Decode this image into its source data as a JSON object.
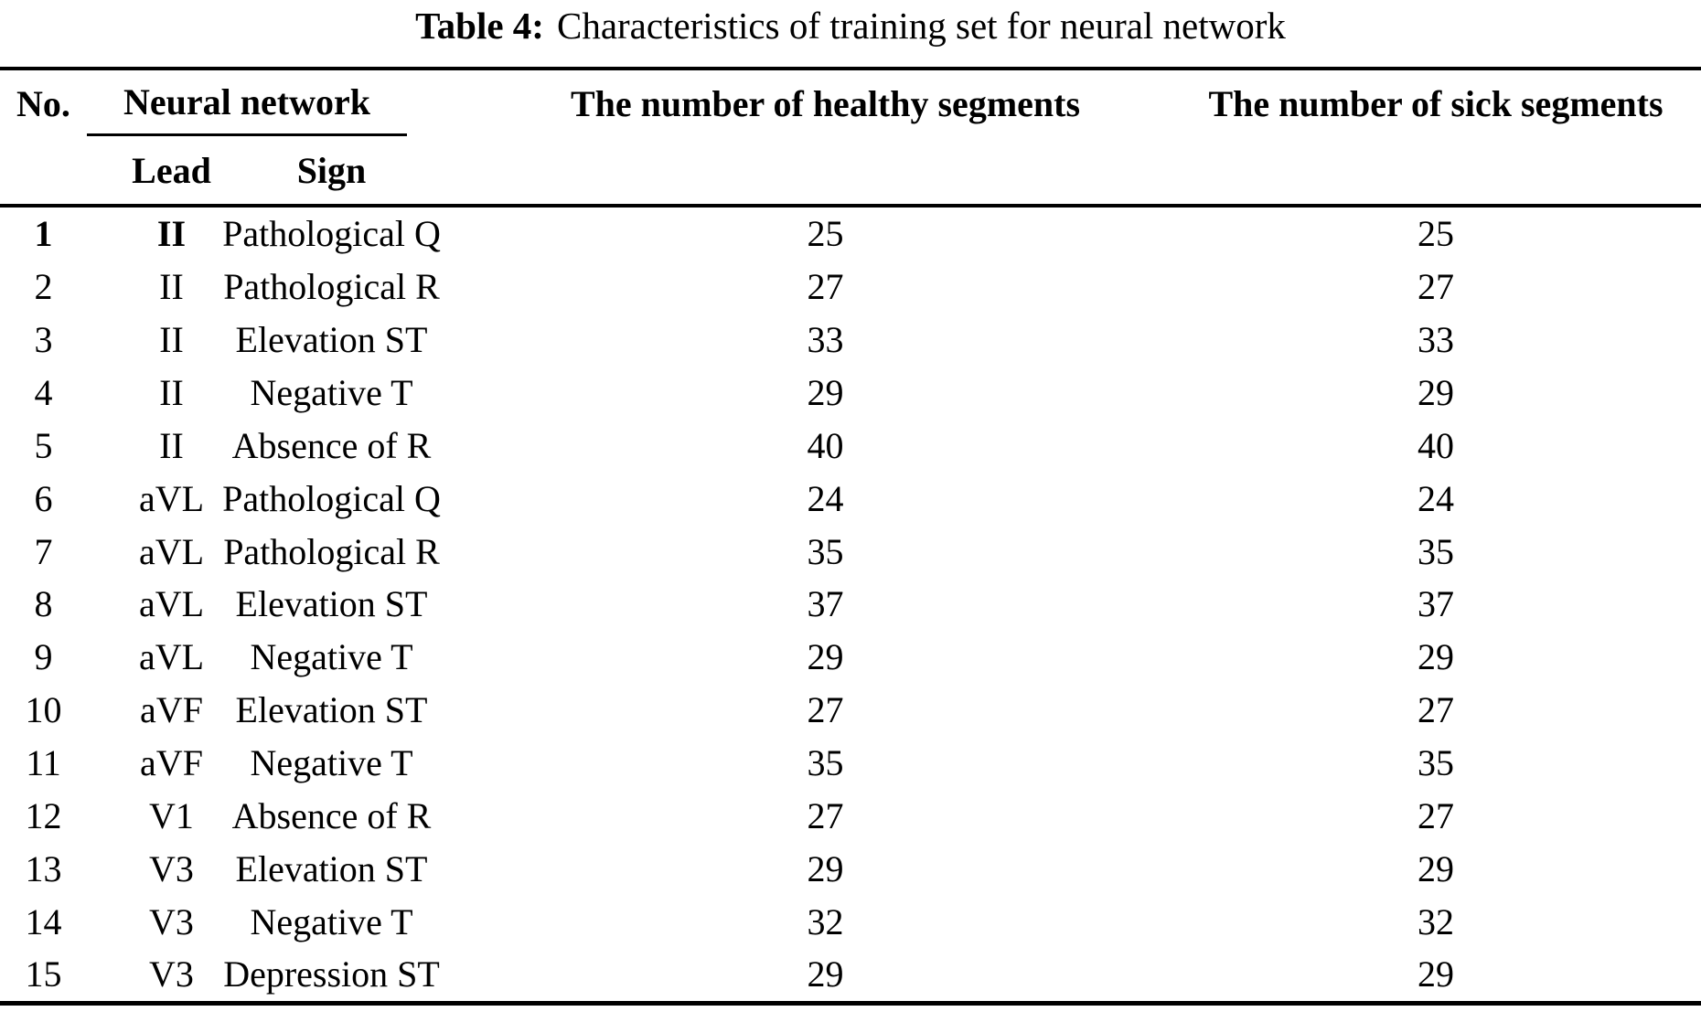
{
  "caption": {
    "label": "Table 4:",
    "text": "Characteristics of training set for neural network"
  },
  "table": {
    "headers": {
      "no": "No.",
      "group": "Neural network",
      "lead": "Lead",
      "sign": "Sign",
      "healthy": "The number of healthy segments",
      "sick": "The number of sick segments"
    },
    "rows": [
      {
        "no": "1",
        "lead": "II",
        "sign": "Pathological Q",
        "healthy": 25,
        "sick": 25,
        "emphasized": true
      },
      {
        "no": "2",
        "lead": "II",
        "sign": "Pathological R",
        "healthy": 27,
        "sick": 27,
        "emphasized": false
      },
      {
        "no": "3",
        "lead": "II",
        "sign": "Elevation ST",
        "healthy": 33,
        "sick": 33,
        "emphasized": false
      },
      {
        "no": "4",
        "lead": "II",
        "sign": "Negative T",
        "healthy": 29,
        "sick": 29,
        "emphasized": false
      },
      {
        "no": "5",
        "lead": "II",
        "sign": "Absence of R",
        "healthy": 40,
        "sick": 40,
        "emphasized": false
      },
      {
        "no": "6",
        "lead": "aVL",
        "sign": "Pathological Q",
        "healthy": 24,
        "sick": 24,
        "emphasized": false
      },
      {
        "no": "7",
        "lead": "aVL",
        "sign": "Pathological R",
        "healthy": 35,
        "sick": 35,
        "emphasized": false
      },
      {
        "no": "8",
        "lead": "aVL",
        "sign": "Elevation ST",
        "healthy": 37,
        "sick": 37,
        "emphasized": false
      },
      {
        "no": "9",
        "lead": "aVL",
        "sign": "Negative T",
        "healthy": 29,
        "sick": 29,
        "emphasized": false
      },
      {
        "no": "10",
        "lead": "aVF",
        "sign": "Elevation ST",
        "healthy": 27,
        "sick": 27,
        "emphasized": false
      },
      {
        "no": "11",
        "lead": "aVF",
        "sign": "Negative T",
        "healthy": 35,
        "sick": 35,
        "emphasized": false
      },
      {
        "no": "12",
        "lead": "V1",
        "sign": "Absence of R",
        "healthy": 27,
        "sick": 27,
        "emphasized": false
      },
      {
        "no": "13",
        "lead": "V3",
        "sign": "Elevation ST",
        "healthy": 29,
        "sick": 29,
        "emphasized": false
      },
      {
        "no": "14",
        "lead": "V3",
        "sign": "Negative T",
        "healthy": 32,
        "sick": 32,
        "emphasized": false
      },
      {
        "no": "15",
        "lead": "V3",
        "sign": "Depression ST",
        "healthy": 29,
        "sick": 29,
        "emphasized": false
      }
    ]
  },
  "colors": {
    "text": "#000000",
    "rule": "#000000",
    "background": "#ffffff"
  }
}
